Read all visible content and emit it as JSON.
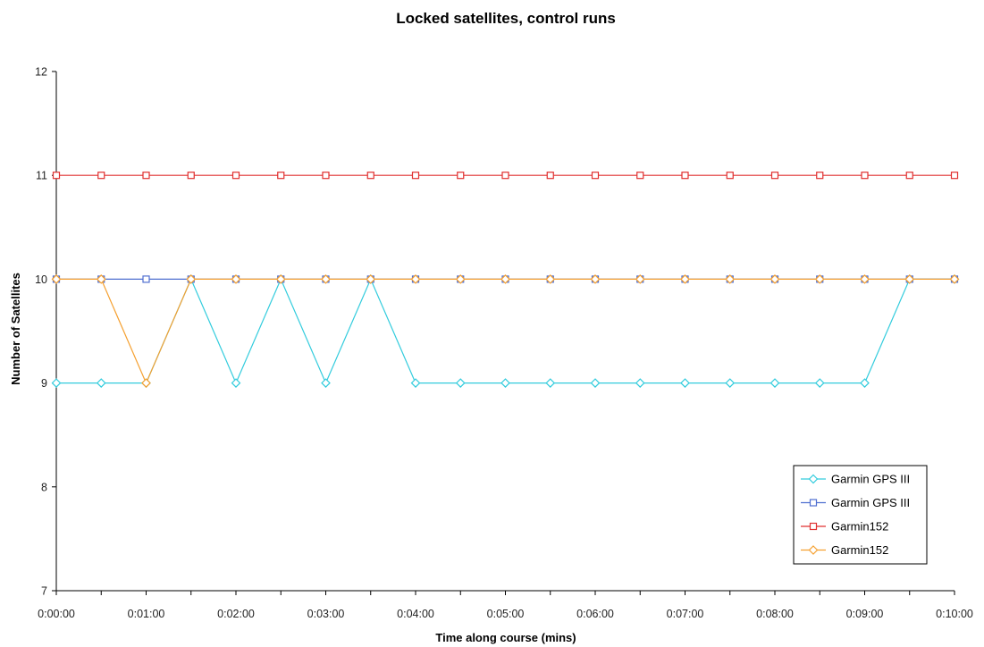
{
  "chart_data": {
    "type": "line",
    "title": "Locked satellites, control runs",
    "xlabel": "Time along course (mins)",
    "ylabel": "Number of Satellites",
    "x": [
      "0:00:00",
      "0:00:30",
      "0:01:00",
      "0:01:30",
      "0:02:00",
      "0:02:30",
      "0:03:00",
      "0:03:30",
      "0:04:00",
      "0:04:30",
      "0:05:00",
      "0:05:30",
      "0:06:00",
      "0:06:30",
      "0:07:00",
      "0:07:30",
      "0:08:00",
      "0:08:30",
      "0:09:00",
      "0:09:30",
      "0:10:00"
    ],
    "xticks": [
      "0:00:00",
      "0:01:00",
      "0:02:00",
      "0:03:00",
      "0:04:00",
      "0:05:00",
      "0:06:00",
      "0:07:00",
      "0:08:00",
      "0:09:00",
      "0:10:00"
    ],
    "ylim": [
      7,
      12
    ],
    "yticks": [
      "7",
      "8",
      "9",
      "10",
      "11",
      "12"
    ],
    "grid": false,
    "legend_position": "bottom-right",
    "series": [
      {
        "name": "Garmin GPS III",
        "color": "#33CCDD",
        "marker": "diamond",
        "values": [
          9,
          9,
          9,
          10,
          9,
          10,
          9,
          10,
          9,
          9,
          9,
          9,
          9,
          9,
          9,
          9,
          9,
          9,
          9,
          10,
          10
        ]
      },
      {
        "name": "Garmin GPS III",
        "color": "#4F6FD0",
        "marker": "square",
        "values": [
          10,
          10,
          10,
          10,
          10,
          10,
          10,
          10,
          10,
          10,
          10,
          10,
          10,
          10,
          10,
          10,
          10,
          10,
          10,
          10,
          10
        ]
      },
      {
        "name": "Garmin152",
        "color": "#E03030",
        "marker": "square",
        "values": [
          11,
          11,
          11,
          11,
          11,
          11,
          11,
          11,
          11,
          11,
          11,
          11,
          11,
          11,
          11,
          11,
          11,
          11,
          11,
          11,
          11
        ]
      },
      {
        "name": "Garmin152",
        "color": "#F5A030",
        "marker": "diamond",
        "values": [
          10,
          10,
          9,
          10,
          10,
          10,
          10,
          10,
          10,
          10,
          10,
          10,
          10,
          10,
          10,
          10,
          10,
          10,
          10,
          10,
          10
        ]
      }
    ]
  }
}
